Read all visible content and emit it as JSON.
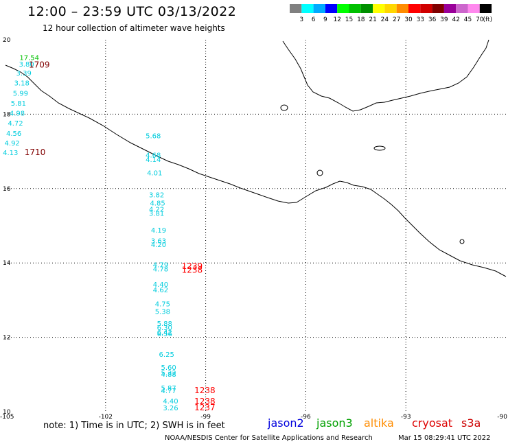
{
  "header": {
    "title": "12:00 – 23:59 UTC 03/13/2022",
    "subtitle": "12 hour collection of altimeter wave heights"
  },
  "legend": {
    "unit": "(ft)",
    "items": [
      {
        "label": "3",
        "color": "#808080"
      },
      {
        "label": "6",
        "color": "#00ffff"
      },
      {
        "label": "9",
        "color": "#00aaff"
      },
      {
        "label": "12",
        "color": "#0000ff"
      },
      {
        "label": "15",
        "color": "#00ff00"
      },
      {
        "label": "18",
        "color": "#00c000"
      },
      {
        "label": "21",
        "color": "#009000"
      },
      {
        "label": "24",
        "color": "#ffff00"
      },
      {
        "label": "27",
        "color": "#ffd700"
      },
      {
        "label": "30",
        "color": "#ff8c00"
      },
      {
        "label": "33",
        "color": "#ff0000"
      },
      {
        "label": "36",
        "color": "#d00000"
      },
      {
        "label": "39",
        "color": "#800000"
      },
      {
        "label": "42",
        "color": "#990099"
      },
      {
        "label": "45",
        "color": "#cc66cc"
      },
      {
        "label": "70",
        "color": "#ff88ee"
      },
      {
        "label": "",
        "color": "#000000"
      }
    ]
  },
  "axes": {
    "lon_labels": [
      "-105",
      "-102",
      "-99",
      "-96",
      "-93",
      "-90"
    ],
    "lat_labels": [
      "20",
      "18",
      "16",
      "14",
      "12",
      "10"
    ]
  },
  "wave_heights": [
    {
      "text": "17.54",
      "lon": -104.58,
      "lat": 19.46,
      "color": "#00c000"
    },
    {
      "text": "3.80",
      "lon": -104.6,
      "lat": 19.28,
      "color": "#00ccdd"
    },
    {
      "text": "3.39",
      "lon": -104.68,
      "lat": 19.04,
      "color": "#00ccdd"
    },
    {
      "text": "3.18",
      "lon": -104.74,
      "lat": 18.77,
      "color": "#00ccdd"
    },
    {
      "text": "5.99",
      "lon": -104.78,
      "lat": 18.5,
      "color": "#00ccdd"
    },
    {
      "text": "5.81",
      "lon": -104.84,
      "lat": 18.23,
      "color": "#00ccdd"
    },
    {
      "text": "4.98",
      "lon": -104.88,
      "lat": 17.96,
      "color": "#00ccdd"
    },
    {
      "text": "4.72",
      "lon": -104.93,
      "lat": 17.69,
      "color": "#00ccdd"
    },
    {
      "text": "4.56",
      "lon": -104.98,
      "lat": 17.42,
      "color": "#00ccdd"
    },
    {
      "text": "4.92",
      "lon": -105.03,
      "lat": 17.16,
      "color": "#00ccdd"
    },
    {
      "text": "4.13",
      "lon": -105.08,
      "lat": 16.9,
      "color": "#00ccdd"
    },
    {
      "text": "5.68",
      "lon": -100.8,
      "lat": 17.35,
      "color": "#00ccdd"
    },
    {
      "text": "4.68",
      "lon": -100.8,
      "lat": 16.84,
      "color": "#00ccdd"
    },
    {
      "text": "4.14",
      "lon": -100.8,
      "lat": 16.72,
      "color": "#00ccdd"
    },
    {
      "text": "4.01",
      "lon": -100.76,
      "lat": 16.36,
      "color": "#00ccdd"
    },
    {
      "text": "3.82",
      "lon": -100.7,
      "lat": 15.77,
      "color": "#00ccdd"
    },
    {
      "text": "4.85",
      "lon": -100.67,
      "lat": 15.54,
      "color": "#00ccdd"
    },
    {
      "text": "4.22",
      "lon": -100.7,
      "lat": 15.38,
      "color": "#00ccdd"
    },
    {
      "text": "3.81",
      "lon": -100.7,
      "lat": 15.27,
      "color": "#00ccdd"
    },
    {
      "text": "4.19",
      "lon": -100.64,
      "lat": 14.82,
      "color": "#00ccdd"
    },
    {
      "text": "3.63",
      "lon": -100.64,
      "lat": 14.53,
      "color": "#00ccdd"
    },
    {
      "text": "4.20",
      "lon": -100.64,
      "lat": 14.43,
      "color": "#00ccdd"
    },
    {
      "text": "4.79",
      "lon": -100.58,
      "lat": 13.88,
      "color": "#00ccdd"
    },
    {
      "text": "4.78",
      "lon": -100.58,
      "lat": 13.77,
      "color": "#00ccdd"
    },
    {
      "text": "4.40",
      "lon": -100.58,
      "lat": 13.36,
      "color": "#00ccdd"
    },
    {
      "text": "4.62",
      "lon": -100.58,
      "lat": 13.21,
      "color": "#00ccdd"
    },
    {
      "text": "4.75",
      "lon": -100.52,
      "lat": 12.83,
      "color": "#00ccdd"
    },
    {
      "text": "5.38",
      "lon": -100.52,
      "lat": 12.63,
      "color": "#00ccdd"
    },
    {
      "text": "5.88",
      "lon": -100.46,
      "lat": 12.31,
      "color": "#00ccdd"
    },
    {
      "text": "6.30",
      "lon": -100.46,
      "lat": 12.2,
      "color": "#00ccdd"
    },
    {
      "text": "6.42",
      "lon": -100.46,
      "lat": 12.07,
      "color": "#00ccdd"
    },
    {
      "text": "6.56",
      "lon": -100.46,
      "lat": 12.03,
      "color": "#00ccdd"
    },
    {
      "text": "6.25",
      "lon": -100.4,
      "lat": 11.48,
      "color": "#00ccdd"
    },
    {
      "text": "5.60",
      "lon": -100.34,
      "lat": 11.13,
      "color": "#00ccdd"
    },
    {
      "text": "5.32",
      "lon": -100.34,
      "lat": 10.98,
      "color": "#00ccdd"
    },
    {
      "text": "4.88",
      "lon": -100.34,
      "lat": 10.94,
      "color": "#00ccdd"
    },
    {
      "text": "5.87",
      "lon": -100.34,
      "lat": 10.57,
      "color": "#00ccdd"
    },
    {
      "text": "4.77",
      "lon": -100.34,
      "lat": 10.5,
      "color": "#00ccdd"
    },
    {
      "text": "4.40",
      "lon": -100.28,
      "lat": 10.22,
      "color": "#00ccdd"
    },
    {
      "text": "3.26",
      "lon": -100.28,
      "lat": 10.04,
      "color": "#00ccdd"
    }
  ],
  "time_labels": [
    {
      "text": "1709",
      "lon": -104.3,
      "lat": 19.25,
      "color": "#800000"
    },
    {
      "text": "1710",
      "lon": -104.43,
      "lat": 16.9,
      "color": "#800000"
    },
    {
      "text": "1239",
      "lon": -99.72,
      "lat": 13.84,
      "color": "#ff0000"
    },
    {
      "text": "1238",
      "lon": -99.72,
      "lat": 13.74,
      "color": "#ff0000"
    },
    {
      "text": "1238",
      "lon": -99.34,
      "lat": 10.5,
      "color": "#ff0000"
    },
    {
      "text": "1238",
      "lon": -99.34,
      "lat": 10.2,
      "color": "#ff0000"
    },
    {
      "text": "1237",
      "lon": -99.34,
      "lat": 10.04,
      "color": "#ff0000"
    }
  ],
  "notes": {
    "units_note": "note:  1) Time is in UTC;  2) SWH is in feet",
    "satellites": [
      {
        "label": "jason2",
        "color": "#0000dd"
      },
      {
        "label": "jason3",
        "color": "#00a000"
      },
      {
        "label": "altika",
        "color": "#ff8c00"
      },
      {
        "label": "cryosat",
        "color": "#dd0000"
      },
      {
        "label": "s3a",
        "color": "#cc0000"
      }
    ],
    "source": "NOAA/NESDIS Center for Satellite Applications and Research",
    "generated": "Mar 15 08:29:41 UTC 2022"
  }
}
